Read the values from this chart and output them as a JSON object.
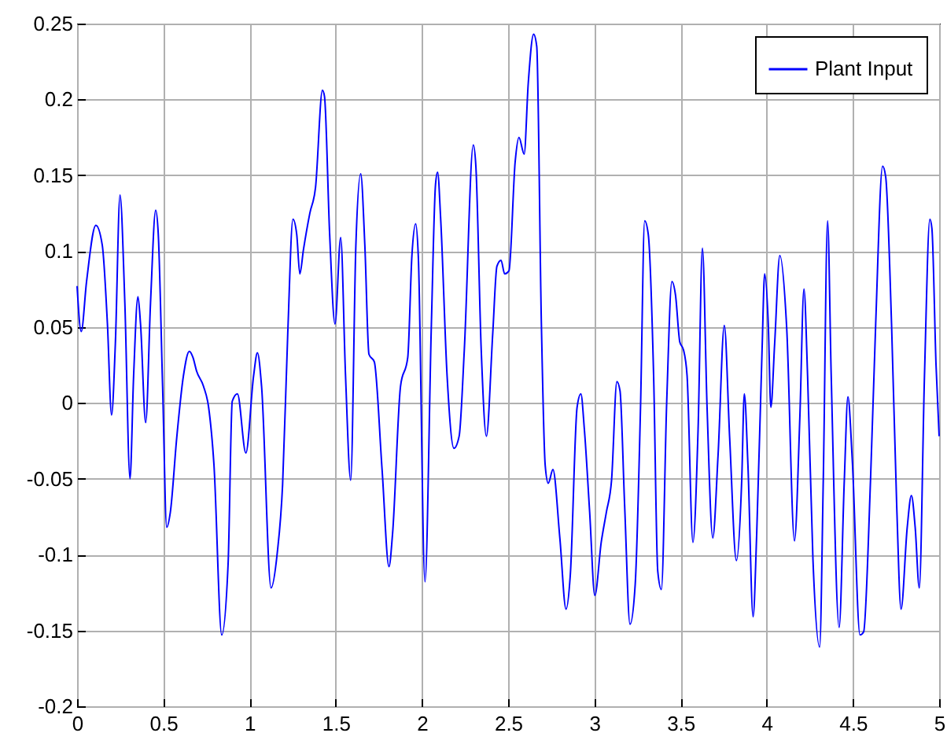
{
  "chart_data": {
    "type": "line",
    "xlim": [
      0,
      5
    ],
    "ylim": [
      -0.2,
      0.25
    ],
    "xticks": [
      0,
      0.5,
      1,
      1.5,
      2,
      2.5,
      3,
      3.5,
      4,
      4.5,
      5
    ],
    "yticks": [
      -0.2,
      -0.15,
      -0.1,
      -0.05,
      0,
      0.05,
      0.1,
      0.15,
      0.2,
      0.25
    ],
    "grid": true,
    "legend": "top right",
    "line_style": "solid",
    "series": [
      {
        "name": "Plant Input",
        "color": "#0000ff",
        "x": [
          0,
          0.024,
          0.055,
          0.109,
          0.146,
          0.176,
          0.2,
          0.222,
          0.249,
          0.277,
          0.307,
          0.328,
          0.353,
          0.368,
          0.398,
          0.426,
          0.456,
          0.471,
          0.496,
          0.52,
          0.541,
          0.578,
          0.617,
          0.651,
          0.672,
          0.693,
          0.733,
          0.763,
          0.794,
          0.839,
          0.876,
          0.9,
          0.93,
          0.979,
          1.024,
          1.046,
          1.07,
          1.125,
          1.161,
          1.192,
          1.222,
          1.252,
          1.274,
          1.292,
          1.313,
          1.35,
          1.383,
          1.423,
          1.435,
          1.465,
          1.496,
          1.529,
          1.557,
          1.587,
          1.617,
          1.645,
          1.669,
          1.693,
          1.724,
          1.769,
          1.809,
          1.83,
          1.876,
          1.918,
          1.942,
          1.964,
          1.979,
          2.018,
          2.055,
          2.079,
          2.091,
          2.109,
          2.146,
          2.186,
          2.216,
          2.246,
          2.298,
          2.313,
          2.344,
          2.374,
          2.411,
          2.435,
          2.459,
          2.48,
          2.505,
          2.541,
          2.563,
          2.593,
          2.617,
          2.648,
          2.666,
          2.693,
          2.715,
          2.733,
          2.76,
          2.8,
          2.836,
          2.861,
          2.9,
          2.922,
          2.942,
          2.973,
          3.003,
          3.04,
          3.07,
          3.1,
          3.131,
          3.149,
          3.176,
          3.207,
          3.237,
          3.268,
          3.292,
          3.313,
          3.344,
          3.368,
          3.389,
          3.42,
          3.45,
          3.471,
          3.496,
          3.517,
          3.538,
          3.572,
          3.602,
          3.627,
          3.654,
          3.687,
          3.718,
          3.754,
          3.785,
          3.824,
          3.855,
          3.87,
          3.891,
          3.921,
          3.942,
          3.973,
          3.988,
          4.009,
          4.024,
          4.046,
          4.076,
          4.116,
          4.161,
          4.192,
          4.216,
          4.237,
          4.268,
          4.307,
          4.328,
          4.353,
          4.374,
          4.42,
          4.45,
          4.471,
          4.496,
          4.541,
          4.562,
          4.602,
          4.632,
          4.672,
          4.69,
          4.724,
          4.754,
          4.779,
          4.815,
          4.839,
          4.861,
          4.885,
          4.915,
          4.946,
          4.958,
          4.982,
          5
        ],
        "values": [
          0.077,
          0.047,
          0.08,
          0.117,
          0.104,
          0.052,
          -0.008,
          0.039,
          0.137,
          0.066,
          -0.05,
          0.018,
          0.07,
          0.052,
          -0.013,
          0.066,
          0.127,
          0.111,
          0.011,
          -0.082,
          -0.072,
          -0.023,
          0.018,
          0.034,
          0.03,
          0.021,
          0.011,
          -0.003,
          -0.041,
          -0.153,
          -0.106,
          0.001,
          0.006,
          -0.033,
          0.018,
          0.033,
          0.011,
          -0.122,
          -0.099,
          -0.054,
          0.046,
          0.121,
          0.111,
          0.085,
          0.101,
          0.125,
          0.142,
          0.206,
          0.202,
          0.111,
          0.052,
          0.109,
          0.018,
          -0.051,
          0.104,
          0.151,
          0.104,
          0.032,
          0.027,
          -0.044,
          -0.108,
          -0.086,
          0.011,
          0.03,
          0.097,
          0.118,
          0.097,
          -0.118,
          0.052,
          0.144,
          0.152,
          0.121,
          0.018,
          -0.03,
          -0.022,
          0.035,
          0.17,
          0.156,
          0.035,
          -0.022,
          0.046,
          0.09,
          0.094,
          0.085,
          0.087,
          0.159,
          0.175,
          0.164,
          0.211,
          0.243,
          0.235,
          0.052,
          -0.041,
          -0.053,
          -0.044,
          -0.089,
          -0.136,
          -0.113,
          -0.003,
          0.006,
          -0.017,
          -0.072,
          -0.127,
          -0.092,
          -0.072,
          -0.051,
          0.014,
          0.008,
          -0.068,
          -0.146,
          -0.12,
          -0.003,
          0.12,
          0.111,
          0.018,
          -0.111,
          -0.123,
          0.001,
          0.08,
          0.071,
          0.04,
          0.035,
          0.018,
          -0.092,
          -0.017,
          0.102,
          -0.003,
          -0.089,
          -0.034,
          0.051,
          -0.023,
          -0.104,
          -0.051,
          0.006,
          -0.041,
          -0.141,
          -0.086,
          0.035,
          0.085,
          0.052,
          -0.003,
          0.039,
          0.097,
          0.049,
          -0.091,
          -0.01,
          0.075,
          0.018,
          -0.103,
          -0.161,
          -0.051,
          0.12,
          0.018,
          -0.148,
          -0.051,
          0.004,
          -0.037,
          -0.153,
          -0.151,
          -0.051,
          0.052,
          0.156,
          0.149,
          0.052,
          -0.068,
          -0.136,
          -0.082,
          -0.061,
          -0.082,
          -0.122,
          0.018,
          0.121,
          0.115,
          0.025,
          -0.022
        ]
      }
    ]
  }
}
